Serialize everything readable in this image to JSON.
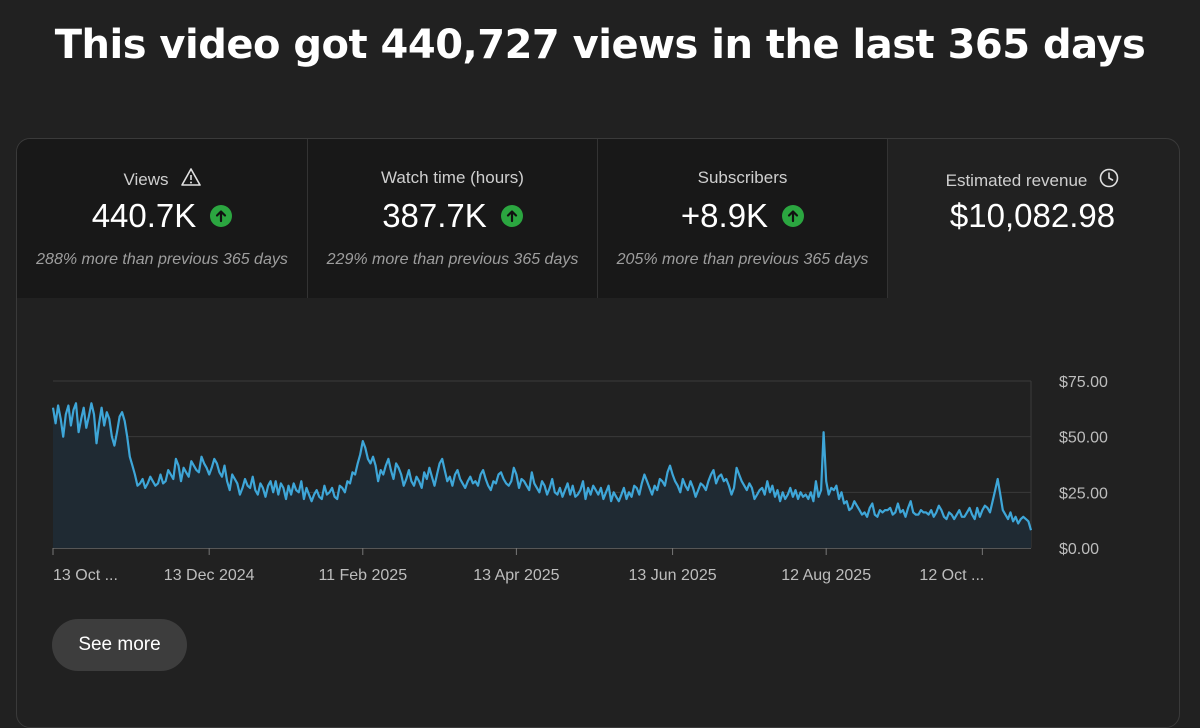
{
  "headline": "This video got 440,727 views in the last 365 days",
  "metrics": [
    {
      "label": "Views",
      "value": "440.7K",
      "compare": "288% more than previous 365 days",
      "icon": "warning-icon",
      "trend": "up"
    },
    {
      "label": "Watch time (hours)",
      "value": "387.7K",
      "compare": "229% more than previous 365 days",
      "trend": "up"
    },
    {
      "label": "Subscribers",
      "value": "+8.9K",
      "compare": "205% more than previous 365 days",
      "trend": "up"
    },
    {
      "label": "Estimated revenue",
      "value": "$10,082.98",
      "icon": "clock-icon"
    }
  ],
  "see_more_label": "See more",
  "colors": {
    "line": "#3ea6d8",
    "fill": "#1f2a33",
    "up": "#2ba640"
  },
  "chart_data": {
    "type": "area",
    "ylim": [
      0,
      75
    ],
    "y_ticks": [
      {
        "value": 75,
        "label": "$75.00"
      },
      {
        "value": 50,
        "label": "$50.00"
      },
      {
        "value": 25,
        "label": "$25.00"
      },
      {
        "value": 0,
        "label": "$0.00"
      }
    ],
    "x_tick_labels": [
      "13 Oct ...",
      "13 Dec 2024",
      "11 Feb 2025",
      "13 Apr 2025",
      "13 Jun 2025",
      "12 Aug 2025",
      "12 Oct ..."
    ],
    "x_tick_days": [
      0,
      61,
      121,
      181,
      242,
      302,
      363
    ],
    "series": [
      {
        "values": [
          63,
          56,
          64,
          58,
          50,
          60,
          64,
          55,
          62,
          65,
          52,
          58,
          63,
          54,
          59,
          65,
          60,
          47,
          56,
          63,
          55,
          61,
          58,
          50,
          46,
          52,
          59,
          61,
          57,
          50,
          41,
          37,
          33,
          28,
          29,
          31,
          27,
          29,
          32,
          30,
          28,
          29,
          33,
          29,
          30,
          35,
          33,
          31,
          40,
          37,
          30,
          36,
          34,
          32,
          39,
          37,
          35,
          34,
          41,
          38,
          36,
          33,
          36,
          40,
          38,
          34,
          32,
          37,
          30,
          26,
          33,
          31,
          29,
          24,
          27,
          31,
          28,
          27,
          32,
          26,
          24,
          29,
          27,
          23,
          28,
          30,
          25,
          30,
          24,
          29,
          27,
          22,
          28,
          24,
          29,
          26,
          25,
          30,
          22,
          27,
          24,
          21,
          24,
          26,
          23,
          22,
          28,
          24,
          25,
          27,
          23,
          22,
          28,
          27,
          25,
          30,
          29,
          34,
          33,
          38,
          42,
          48,
          45,
          40,
          38,
          41,
          37,
          30,
          35,
          33,
          37,
          40,
          35,
          31,
          38,
          36,
          33,
          28,
          31,
          35,
          30,
          28,
          32,
          30,
          27,
          34,
          31,
          36,
          32,
          28,
          33,
          38,
          40,
          35,
          30,
          32,
          28,
          33,
          35,
          31,
          29,
          27,
          30,
          32,
          29,
          30,
          28,
          33,
          35,
          31,
          28,
          26,
          30,
          29,
          33,
          34,
          31,
          29,
          28,
          30,
          36,
          33,
          27,
          31,
          30,
          28,
          26,
          34,
          29,
          27,
          25,
          30,
          28,
          24,
          27,
          31,
          25,
          24,
          27,
          23,
          26,
          29,
          24,
          28,
          23,
          24,
          26,
          30,
          22,
          27,
          24,
          28,
          26,
          24,
          27,
          22,
          25,
          28,
          21,
          25,
          23,
          21,
          24,
          27,
          22,
          25,
          23,
          28,
          27,
          24,
          29,
          33,
          30,
          27,
          24,
          28,
          26,
          31,
          30,
          28,
          34,
          37,
          33,
          30,
          28,
          25,
          31,
          28,
          26,
          30,
          27,
          23,
          26,
          29,
          28,
          26,
          30,
          33,
          35,
          29,
          32,
          33,
          30,
          31,
          28,
          24,
          27,
          36,
          33,
          30,
          28,
          26,
          29,
          27,
          22,
          24,
          26,
          27,
          24,
          30,
          25,
          28,
          23,
          26,
          21,
          25,
          22,
          24,
          27,
          23,
          26,
          22,
          25,
          23,
          24,
          22,
          25,
          21,
          30,
          23,
          26,
          52,
          30,
          24,
          27,
          26,
          28,
          22,
          25,
          20,
          21,
          17,
          18,
          21,
          19,
          17,
          15,
          16,
          14,
          18,
          20,
          15,
          14,
          17,
          16,
          17,
          17,
          18,
          15,
          16,
          20,
          16,
          17,
          14,
          18,
          21,
          16,
          15,
          15,
          17,
          16,
          16,
          15,
          17,
          14,
          16,
          19,
          17,
          14,
          13,
          16,
          15,
          13,
          15,
          17,
          14,
          14,
          16,
          18,
          15,
          13,
          18,
          14,
          17,
          19,
          18,
          16,
          21,
          26,
          31,
          24,
          17,
          15,
          13,
          16,
          12,
          14,
          11,
          13,
          14,
          13,
          12,
          8
        ]
      }
    ]
  }
}
